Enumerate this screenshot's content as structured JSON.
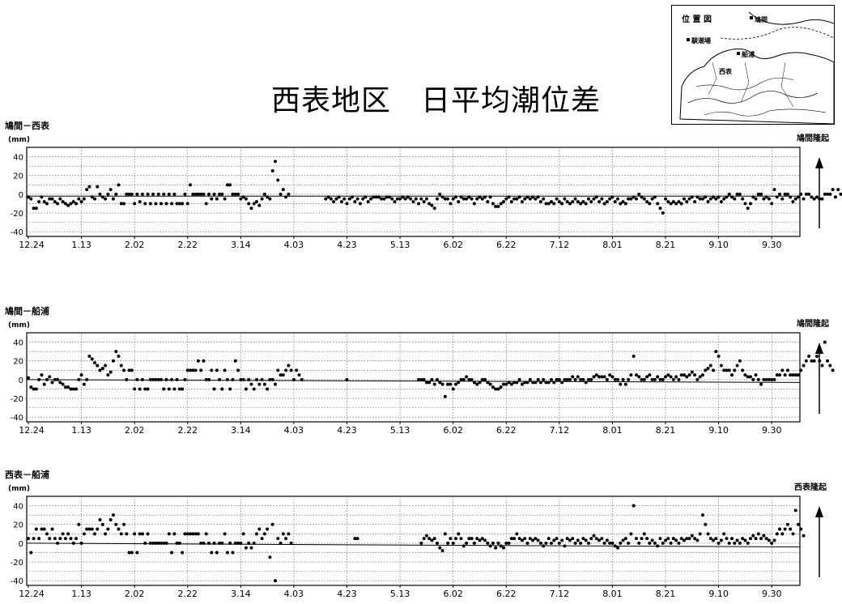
{
  "title": "西表地区　日平均潮位差",
  "location_map": {
    "title": "位 置 図",
    "labels": [
      "鳩間",
      "験潮場",
      "船浦",
      "西表"
    ]
  },
  "panels": [
    {
      "label": "鳩間－西表",
      "unit": "(mm)",
      "uplift": "鳩間隆起"
    },
    {
      "label": "鳩間－船浦",
      "unit": "(mm)",
      "uplift": "鳩間隆起"
    },
    {
      "label": "西表－船浦",
      "unit": "(mm)",
      "uplift": "西表隆起"
    }
  ],
  "colors": {
    "dot": "#000000",
    "grid": "#555555",
    "line": "#000000"
  },
  "chart_data": [
    {
      "type": "scatter",
      "title": "鳩間－西表",
      "ylabel": "(mm)",
      "ylim": [
        -45,
        50
      ],
      "yticks": [
        40,
        20,
        0,
        -20,
        -40
      ],
      "xticks": [
        "12.24",
        "1.13",
        "2.02",
        "2.22",
        "3.14",
        "4.03",
        "4.23",
        "5.13",
        "6.02",
        "6.22",
        "7.12",
        "8.01",
        "8.21",
        "9.10",
        "9.30"
      ],
      "grid": true,
      "reference_line": {
        "y0": -2,
        "y1": -2
      },
      "annotation": "鳩間隆起",
      "segments": [
        {
          "start_day": 0,
          "values": [
            -3,
            -5,
            -15,
            -15,
            -8,
            -3,
            -8,
            -10,
            -5,
            -5,
            -8,
            -10,
            -5,
            -8,
            -10,
            -12,
            -10,
            -8,
            -10,
            -5,
            -8,
            -5,
            5,
            8,
            -3,
            -5,
            8,
            0,
            -3,
            -5,
            0,
            5,
            -5,
            0,
            10,
            -10,
            -10,
            0,
            0,
            0,
            -10,
            0,
            -8,
            0,
            -10,
            0,
            -10,
            0,
            -10,
            0,
            -10,
            0,
            -10,
            0,
            -10,
            0,
            -10,
            -10,
            -10,
            0,
            -10,
            10,
            0,
            0,
            0,
            0,
            0,
            -10,
            0,
            -5,
            0,
            -5,
            0,
            0,
            -5,
            10,
            10,
            0,
            0,
            0,
            -5,
            -3,
            -5,
            -10,
            -15,
            -10,
            -8,
            -12,
            -5,
            0,
            -3,
            -5,
            25,
            35,
            15,
            0,
            5,
            -3,
            0
          ]
        },
        {
          "start_day": 112,
          "values": [
            -5,
            -3,
            -5,
            -8,
            -5,
            -3,
            -8,
            -5,
            -10,
            -5,
            -3,
            -8,
            -5,
            -10,
            -5,
            -3,
            -8,
            -5,
            -3,
            -3,
            -3,
            -5,
            -5,
            -3,
            -3,
            -5,
            -8,
            -5,
            -5,
            -3,
            -5,
            -3,
            -5,
            -8,
            -5,
            -10,
            -5,
            -8,
            -5,
            -10,
            -12,
            -15,
            -5,
            0,
            -3,
            -5,
            -5,
            -10,
            -5,
            -3,
            -8,
            -3,
            -5,
            -5,
            -3,
            -5,
            -10,
            -5,
            -3,
            -5,
            -3,
            -8,
            -3,
            -10,
            -13,
            -13,
            -10,
            -8,
            -5,
            -3,
            -8,
            -5,
            -5,
            -3,
            -8,
            -5,
            -3,
            -5,
            -3,
            -5,
            -3,
            -8,
            -5,
            -10,
            -10,
            -8,
            -10,
            -5,
            -8,
            -10,
            -5,
            -8,
            -10,
            -8,
            -5,
            -8,
            -10,
            -8,
            -10,
            -5,
            -8,
            -5,
            -3,
            -8,
            -5,
            -10,
            -8,
            -5,
            -3,
            -8,
            -5,
            -10,
            -8,
            -10,
            -5,
            -5,
            -3,
            -5,
            0,
            -3,
            -5,
            -8,
            -10,
            -5,
            -3,
            -10,
            -15,
            -20,
            -5,
            -8,
            -10,
            -8,
            -10,
            -8,
            -10,
            -5,
            -8,
            -5,
            -3,
            -8,
            -3,
            -5,
            -5,
            -3,
            -8,
            -5,
            -3,
            -5,
            -3,
            -8,
            -5,
            -3,
            0,
            -3,
            -5,
            0,
            0,
            -5,
            -10,
            -15,
            -10,
            -3,
            -5,
            0,
            0,
            -5,
            -3,
            -5,
            -10,
            5,
            -3,
            0,
            -5,
            0,
            0,
            -3,
            -8,
            -5,
            -3,
            0,
            -5,
            0,
            0,
            -3,
            -5,
            -3,
            -5,
            -5,
            0,
            0,
            0,
            5,
            -3,
            5,
            0,
            5,
            3,
            3,
            -3,
            -3,
            0,
            3,
            5,
            0
          ]
        }
      ]
    },
    {
      "type": "scatter",
      "title": "鳩間－船浦",
      "ylabel": "(mm)",
      "ylim": [
        -45,
        50
      ],
      "yticks": [
        40,
        20,
        0,
        -20,
        -40
      ],
      "xticks": [
        "12.24",
        "1.13",
        "2.02",
        "2.22",
        "3.14",
        "4.03",
        "4.23",
        "5.13",
        "6.02",
        "6.22",
        "7.12",
        "8.01",
        "8.21",
        "9.10",
        "9.30"
      ],
      "grid": true,
      "reference_line": {
        "y0": 0,
        "y1": -3
      },
      "annotation": "鳩間隆起",
      "segments": [
        {
          "start_day": 0,
          "values": [
            2,
            -8,
            -10,
            -10,
            0,
            5,
            -5,
            0,
            3,
            -3,
            0,
            0,
            -3,
            -5,
            -8,
            -8,
            -10,
            -10,
            -10,
            0,
            5,
            -5,
            0,
            25,
            22,
            18,
            15,
            10,
            12,
            15,
            5,
            8,
            20,
            30,
            25,
            15,
            10,
            0,
            10,
            10,
            -10,
            0,
            -10,
            0,
            -10,
            -10,
            0,
            0,
            0,
            0,
            0,
            -10,
            0,
            -10,
            0,
            -10,
            0,
            -10,
            -10,
            0,
            10,
            10,
            10,
            10,
            20,
            10,
            20,
            0,
            0,
            10,
            -10,
            10,
            0,
            -10,
            10,
            0,
            -10,
            0,
            20,
            10,
            0,
            0,
            -10,
            0,
            -5,
            -10,
            0,
            -5,
            0,
            -5,
            -10,
            0,
            0,
            -5,
            10,
            5,
            5,
            10,
            15,
            10,
            0,
            10,
            5,
            0
          ]
        },
        {
          "start_day": 120,
          "values": [
            0
          ]
        },
        {
          "start_day": 147,
          "values": [
            0,
            0,
            0,
            -3,
            -3,
            0,
            -5,
            0,
            -3,
            -5,
            -18,
            -5,
            -5,
            -10,
            -5,
            -3,
            0,
            0,
            3,
            0,
            0,
            -3,
            -5,
            -3,
            0,
            0,
            -3,
            -5,
            -8,
            -10,
            -10,
            -8,
            -5,
            -5,
            -3,
            -5,
            -3,
            -3,
            0,
            -5,
            -3,
            -3,
            0,
            -3,
            -3,
            0,
            -3,
            0,
            -3,
            -3,
            0,
            -3,
            0,
            0,
            -3,
            0,
            0,
            0,
            3,
            0,
            3,
            0,
            0,
            -3,
            0,
            0,
            3,
            5,
            3,
            3,
            3,
            0,
            5,
            3,
            0,
            0,
            -5,
            0,
            -5,
            0,
            5,
            25,
            5,
            3,
            0,
            0,
            3,
            5,
            0,
            0,
            3,
            0,
            0,
            3,
            5,
            3,
            0,
            3,
            0,
            5,
            5,
            3,
            5,
            8,
            5,
            0,
            3,
            5,
            10,
            12,
            15,
            10,
            30,
            25,
            15,
            10,
            10,
            10,
            5,
            10,
            15,
            20,
            10,
            5,
            3,
            3,
            0,
            5,
            0,
            -5,
            0,
            0,
            0,
            0,
            0,
            5,
            5,
            10,
            5,
            10,
            5,
            5,
            5,
            5,
            10,
            15,
            20,
            25,
            20,
            20,
            25,
            20,
            15,
            40,
            20,
            15,
            10
          ]
        }
      ]
    },
    {
      "type": "scatter",
      "title": "西表－船浦",
      "ylabel": "(mm)",
      "ylim": [
        -45,
        50
      ],
      "yticks": [
        40,
        20,
        0,
        -20,
        -40
      ],
      "xticks": [
        "12.24",
        "1.13",
        "2.02",
        "2.22",
        "3.14",
        "4.03",
        "4.23",
        "5.13",
        "6.02",
        "6.22",
        "7.12",
        "8.01",
        "8.21",
        "9.10",
        "9.30"
      ],
      "grid": true,
      "reference_line": {
        "y0": 0,
        "y1": -4
      },
      "annotation": "西表隆起",
      "segments": [
        {
          "start_day": 0,
          "values": [
            5,
            -10,
            5,
            15,
            5,
            15,
            15,
            10,
            5,
            15,
            5,
            0,
            5,
            10,
            5,
            10,
            5,
            0,
            5,
            20,
            0,
            10,
            15,
            15,
            15,
            10,
            15,
            25,
            20,
            10,
            15,
            25,
            30,
            20,
            15,
            10,
            20,
            10,
            -10,
            -10,
            10,
            -10,
            10,
            10,
            0,
            10,
            0,
            0,
            0,
            0,
            0,
            0,
            0,
            10,
            -10,
            10,
            0,
            0,
            -10,
            10,
            10,
            10,
            10,
            10,
            10,
            0,
            0,
            10,
            0,
            -10,
            0,
            -10,
            0,
            0,
            10,
            -10,
            0,
            -10,
            0,
            0,
            0,
            10,
            -5,
            0,
            -5,
            0,
            10,
            15,
            5,
            10,
            15,
            -15,
            20,
            -40,
            5,
            0,
            10,
            5,
            10,
            0
          ]
        },
        {
          "start_day": 123,
          "values": [
            5,
            5
          ]
        },
        {
          "start_day": 148,
          "values": [
            0,
            5,
            8,
            5,
            3,
            5,
            0,
            -5,
            -8,
            10,
            0,
            5,
            0,
            5,
            10,
            5,
            -3,
            0,
            5,
            5,
            0,
            5,
            3,
            5,
            3,
            0,
            -3,
            0,
            -5,
            0,
            -3,
            -5,
            0,
            0,
            5,
            5,
            10,
            5,
            3,
            5,
            0,
            5,
            3,
            5,
            3,
            0,
            -3,
            0,
            5,
            0,
            3,
            5,
            0,
            3,
            -3,
            5,
            3,
            5,
            0,
            3,
            0,
            5,
            3,
            0,
            5,
            8,
            5,
            3,
            5,
            0,
            3,
            0,
            0,
            -3,
            -5,
            0,
            3,
            5,
            0,
            10,
            40,
            5,
            0,
            5,
            10,
            5,
            0,
            3,
            0,
            -3,
            5,
            0,
            3,
            5,
            0,
            5,
            3,
            0,
            5,
            3,
            5,
            5,
            8,
            5,
            3,
            10,
            30,
            20,
            10,
            5,
            3,
            5,
            0,
            3,
            10,
            5,
            0,
            5,
            0,
            3,
            0,
            5,
            3,
            0,
            5,
            8,
            5,
            10,
            5,
            8,
            5,
            3,
            0,
            3,
            10,
            15,
            10,
            15,
            20,
            15,
            10,
            35,
            20,
            15,
            8
          ]
        }
      ]
    }
  ]
}
